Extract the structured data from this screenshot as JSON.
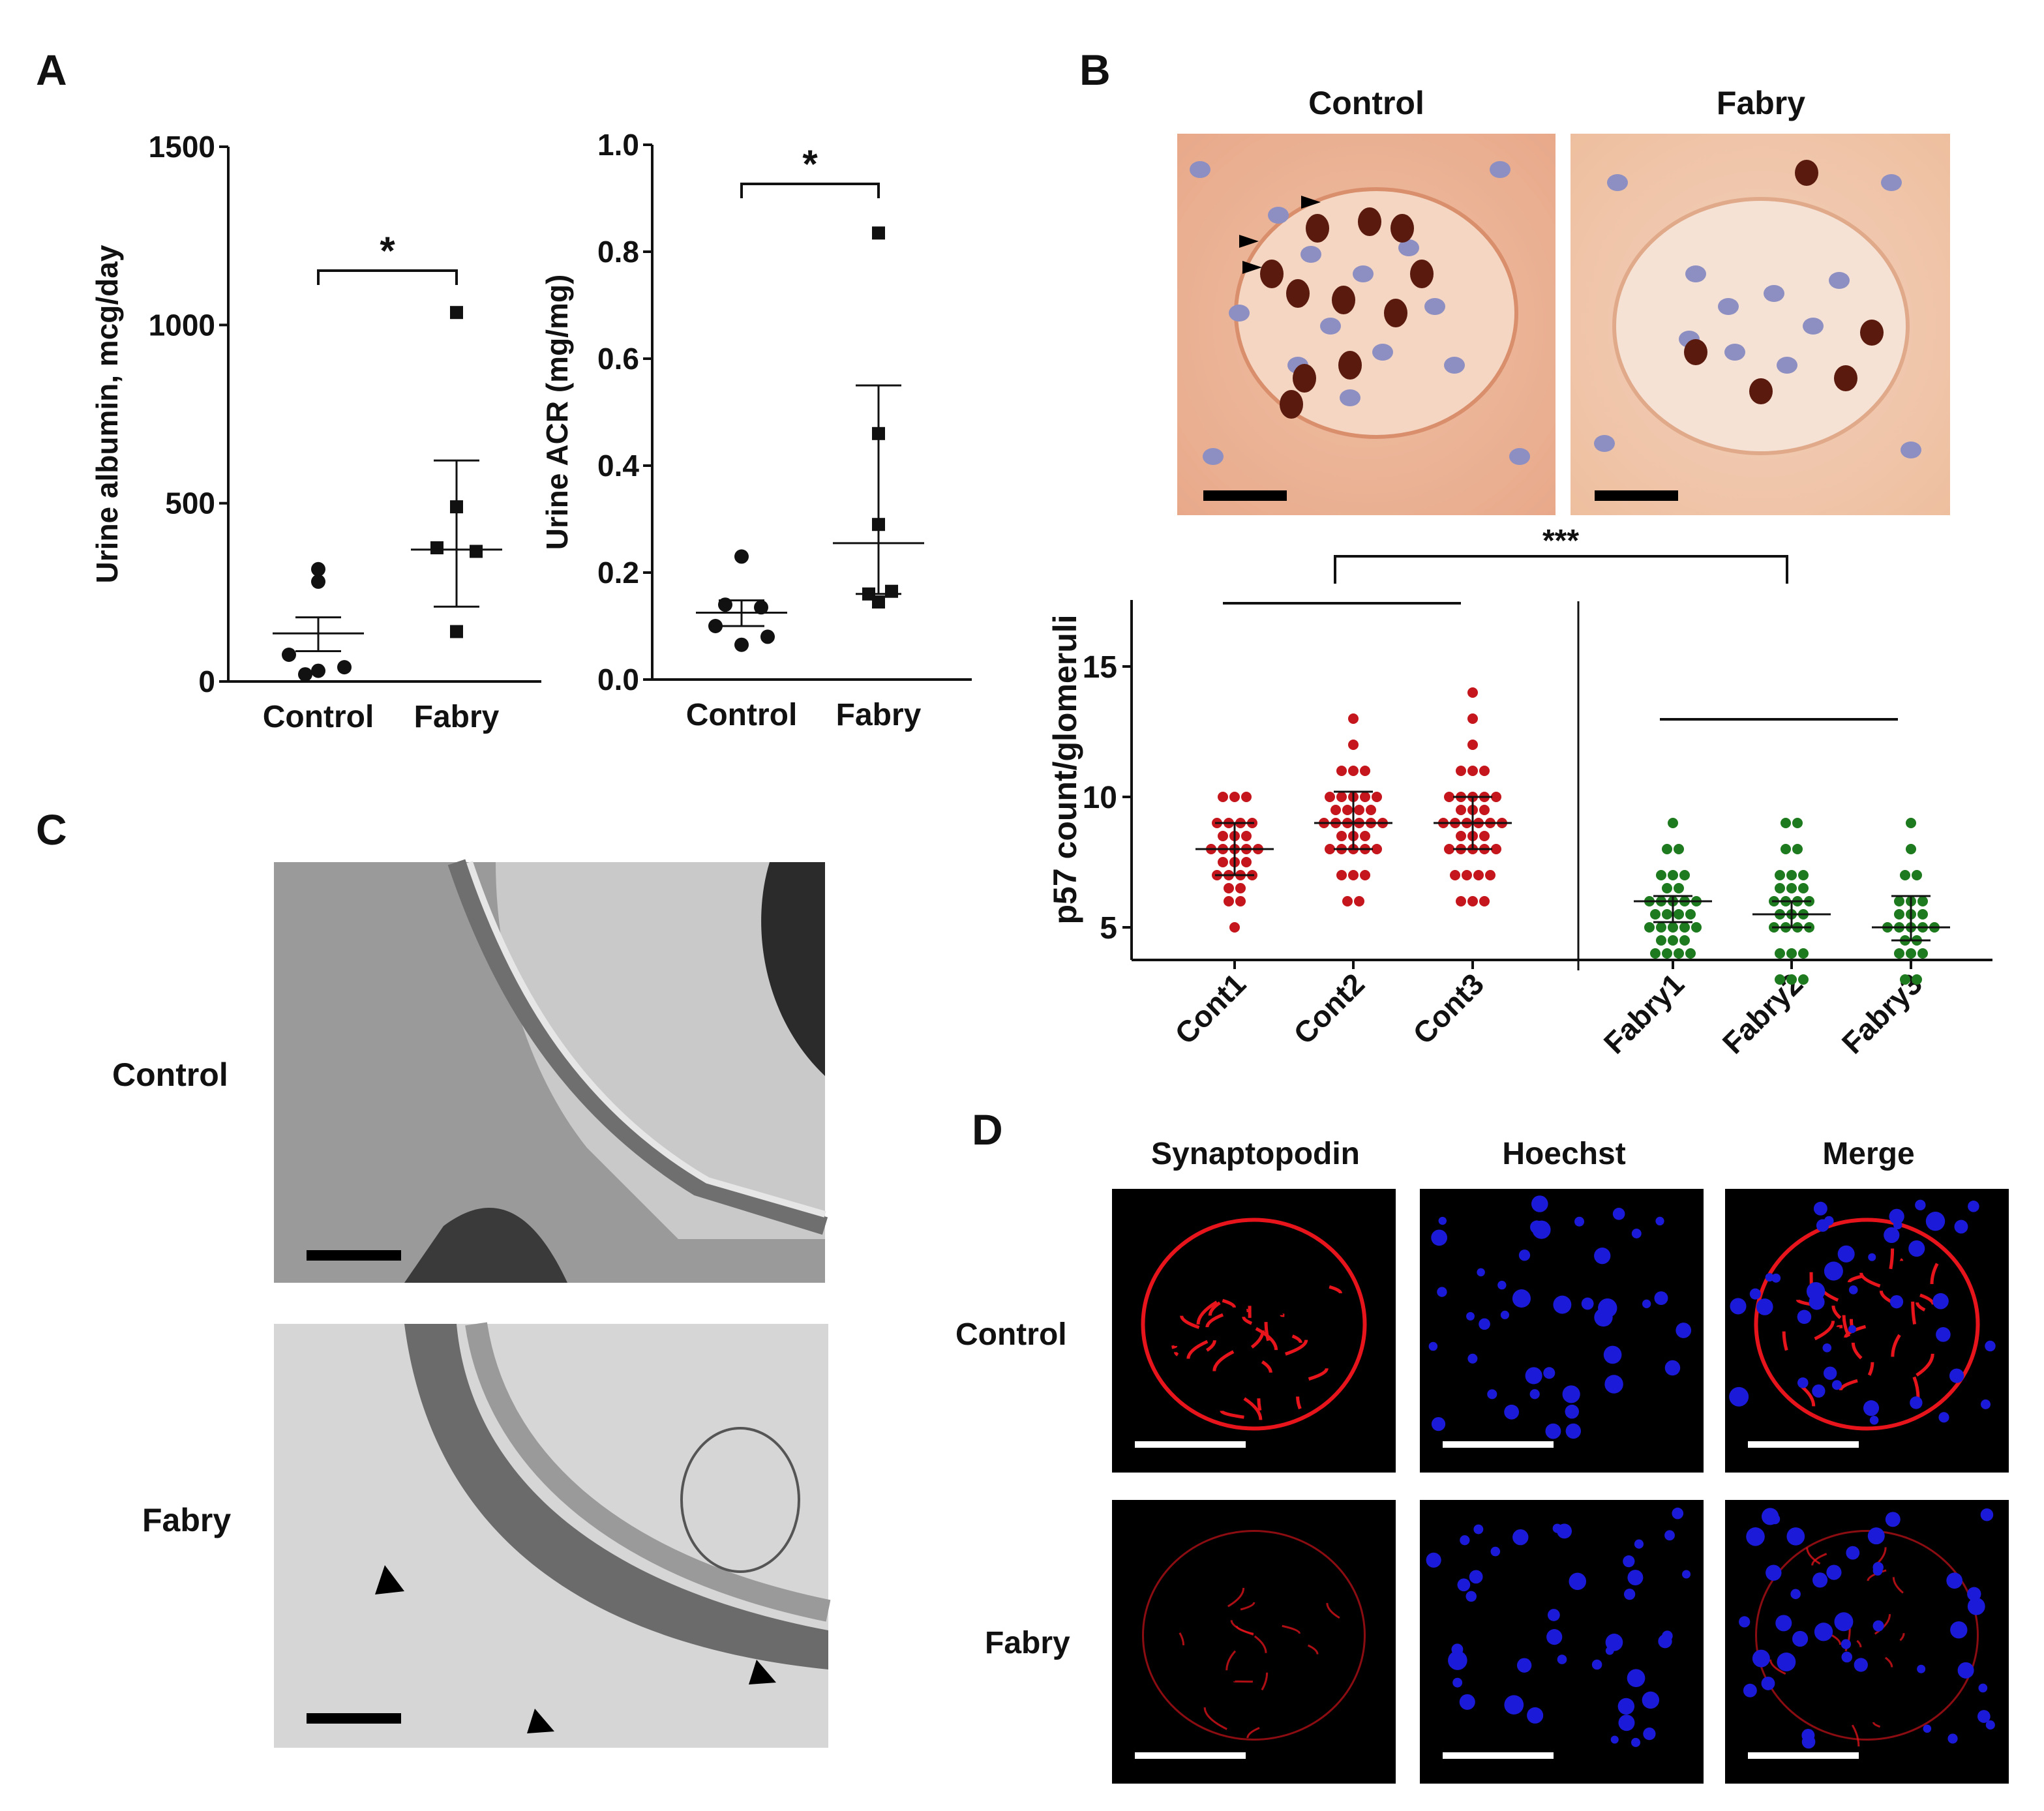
{
  "panels": {
    "A": {
      "label": "A"
    },
    "B": {
      "label": "B",
      "image_titles": [
        "Control",
        "Fabry"
      ]
    },
    "C": {
      "label": "C",
      "row_labels": [
        "Control",
        "Fabry"
      ]
    },
    "D": {
      "label": "D",
      "column_titles": [
        "Synaptopodin",
        "Hoechst",
        "Merge"
      ],
      "row_labels": [
        "Control",
        "Fabry"
      ]
    }
  },
  "chart_data": [
    {
      "id": "A1",
      "type": "scatter",
      "ylabel": "Urine albumin, mcg/day",
      "xlabel": "",
      "categories": [
        "Control",
        "Fabry"
      ],
      "ylim": [
        0,
        1500
      ],
      "yticks": [
        "0",
        "500",
        "1000",
        "1500"
      ],
      "series": [
        {
          "category": "Control",
          "marker": "circle",
          "values": [
            315,
            280,
            75,
            40,
            30,
            20
          ],
          "mean": 135,
          "sem_upper": 180,
          "sem_lower": 85
        },
        {
          "category": "Fabry",
          "marker": "square",
          "values": [
            1035,
            490,
            375,
            365,
            140
          ],
          "mean": 370,
          "sem_upper": 620,
          "sem_lower": 210
        }
      ],
      "significance": "*"
    },
    {
      "id": "A2",
      "type": "scatter",
      "ylabel": "Urine ACR (mg/mg)",
      "xlabel": "",
      "categories": [
        "Control",
        "Fabry"
      ],
      "ylim": [
        0,
        1.0
      ],
      "yticks": [
        "0.0",
        "0.2",
        "0.4",
        "0.6",
        "0.8",
        "1.0"
      ],
      "series": [
        {
          "category": "Control",
          "marker": "circle",
          "values": [
            0.23,
            0.14,
            0.135,
            0.1,
            0.08,
            0.065
          ],
          "mean": 0.125,
          "sem_upper": 0.148,
          "sem_lower": 0.1
        },
        {
          "category": "Fabry",
          "marker": "square",
          "values": [
            0.835,
            0.46,
            0.29,
            0.165,
            0.16,
            0.145
          ],
          "mean": 0.255,
          "sem_upper": 0.55,
          "sem_lower": 0.16
        }
      ],
      "significance": "*"
    },
    {
      "id": "B",
      "type": "scatter",
      "ylabel": "p57 count/glomeruli",
      "xlabel": "",
      "categories": [
        "Cont1",
        "Cont2",
        "Cont3",
        "Fabry1",
        "Fabry2",
        "Fabry3"
      ],
      "ylim": [
        2,
        15
      ],
      "yticks": [
        "5",
        "10",
        "15"
      ],
      "colors": {
        "control": "#c4161c",
        "fabry": "#1e7a1e"
      },
      "series": [
        {
          "category": "Cont1",
          "group": "control",
          "mean": 8,
          "upper": 9,
          "lower": 7,
          "points": [
            [
              5,
              1
            ],
            [
              6,
              2
            ],
            [
              7,
              4
            ],
            [
              8,
              5
            ],
            [
              9,
              4
            ],
            [
              10,
              3
            ],
            [
              6.5,
              2
            ],
            [
              7.5,
              3
            ],
            [
              8.5,
              3
            ]
          ]
        },
        {
          "category": "Cont2",
          "group": "control",
          "mean": 9,
          "upper": 10.2,
          "lower": 8,
          "points": [
            [
              6,
              2
            ],
            [
              7,
              3
            ],
            [
              8,
              5
            ],
            [
              9,
              6
            ],
            [
              10,
              5
            ],
            [
              11,
              3
            ],
            [
              12,
              1
            ],
            [
              13,
              1
            ],
            [
              8.5,
              3
            ],
            [
              9.5,
              4
            ]
          ]
        },
        {
          "category": "Cont3",
          "group": "control",
          "mean": 9,
          "upper": 10,
          "lower": 8,
          "points": [
            [
              6,
              3
            ],
            [
              7,
              4
            ],
            [
              8,
              5
            ],
            [
              9,
              6
            ],
            [
              10,
              5
            ],
            [
              11,
              3
            ],
            [
              12,
              1
            ],
            [
              13,
              1
            ],
            [
              14,
              1
            ],
            [
              8.5,
              3
            ],
            [
              9.5,
              3
            ]
          ]
        },
        {
          "category": "Fabry1",
          "group": "fabry",
          "mean": 6,
          "upper": 6.2,
          "lower": 5.2,
          "points": [
            [
              4,
              4
            ],
            [
              5,
              5
            ],
            [
              6,
              5
            ],
            [
              7,
              3
            ],
            [
              8,
              2
            ],
            [
              9,
              1
            ],
            [
              4.5,
              3
            ],
            [
              5.5,
              4
            ],
            [
              6.5,
              2
            ]
          ]
        },
        {
          "category": "Fabry2",
          "group": "fabry",
          "mean": 5.5,
          "upper": 6,
          "lower": 5,
          "points": [
            [
              3,
              3
            ],
            [
              4,
              3
            ],
            [
              5,
              4
            ],
            [
              6,
              4
            ],
            [
              7,
              3
            ],
            [
              8,
              2
            ],
            [
              9,
              2
            ],
            [
              5.5,
              3
            ],
            [
              6.5,
              3
            ]
          ]
        },
        {
          "category": "Fabry3",
          "group": "fabry",
          "mean": 5,
          "upper": 6.2,
          "lower": 4.5,
          "points": [
            [
              3,
              2
            ],
            [
              4,
              3
            ],
            [
              5,
              5
            ],
            [
              6,
              3
            ],
            [
              7,
              2
            ],
            [
              8,
              1
            ],
            [
              9,
              1
            ],
            [
              4.5,
              2
            ],
            [
              5.5,
              3
            ]
          ]
        }
      ],
      "significance": "***"
    }
  ]
}
